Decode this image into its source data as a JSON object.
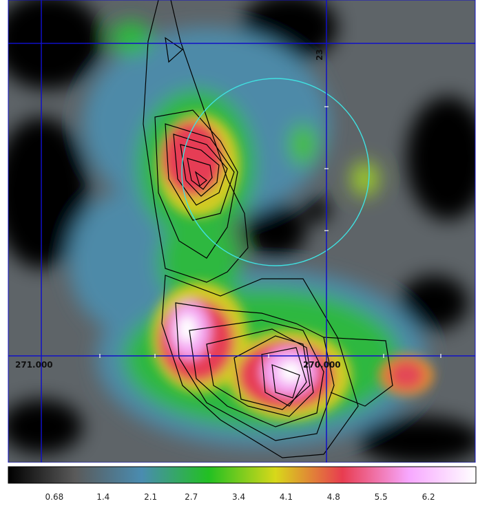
{
  "chart_data": {
    "type": "heatmap",
    "title": "",
    "xlabel": "",
    "ylabel": "",
    "colorbar": {
      "ticks": [
        "0.68",
        "1.4",
        "2.1",
        "2.7",
        "3.4",
        "4.1",
        "4.8",
        "5.5",
        "6.2"
      ],
      "range": [
        0,
        6.9
      ],
      "colors": [
        "#000000",
        "#5a5a5a",
        "#4a8cb0",
        "#22c022",
        "#d8d81a",
        "#e83c50",
        "#f7a8ff",
        "#ffffff"
      ]
    },
    "grid": {
      "color": "#1010c8",
      "coordinate_labels": [
        "271.000",
        "270.000",
        "23"
      ]
    },
    "circle_color": "#40e0e0",
    "contour_color": "#000000"
  }
}
